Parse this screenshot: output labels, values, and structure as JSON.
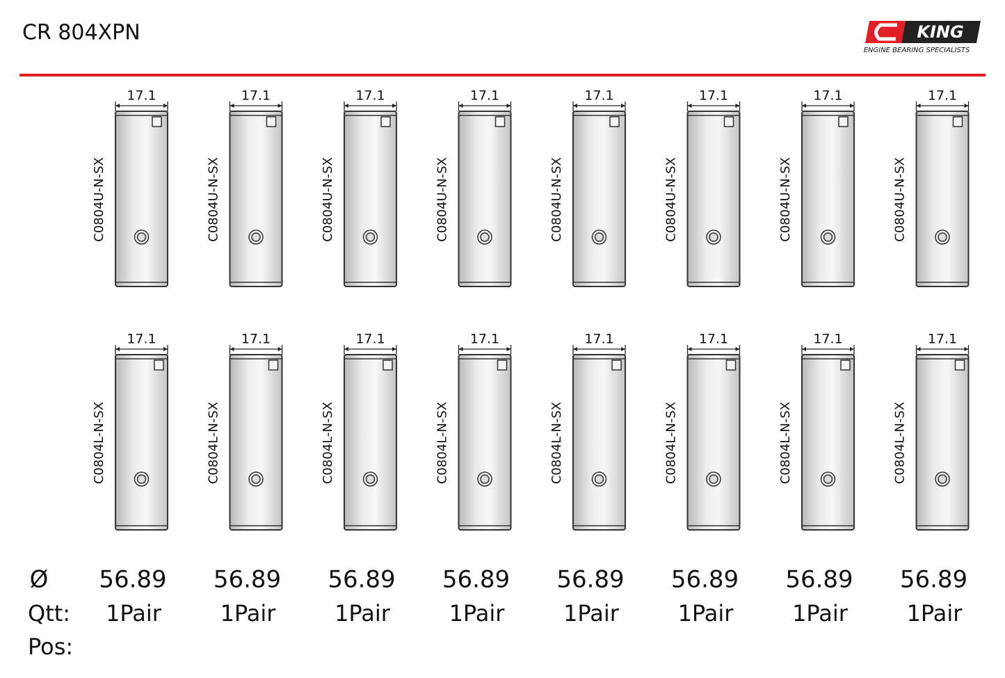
{
  "header": {
    "title": "CR 804XPN",
    "logo": {
      "brand": "KING",
      "tagline": "ENGINE BEARING SPECIALISTS"
    }
  },
  "upper_bearings": [
    {
      "width": "17.1",
      "part": "C0804U-N-SX"
    },
    {
      "width": "17.1",
      "part": "C0804U-N-SX"
    },
    {
      "width": "17.1",
      "part": "C0804U-N-SX"
    },
    {
      "width": "17.1",
      "part": "C0804U-N-SX"
    },
    {
      "width": "17.1",
      "part": "C0804U-N-SX"
    },
    {
      "width": "17.1",
      "part": "C0804U-N-SX"
    },
    {
      "width": "17.1",
      "part": "C0804U-N-SX"
    },
    {
      "width": "17.1",
      "part": "C0804U-N-SX"
    }
  ],
  "lower_bearings": [
    {
      "width": "17.1",
      "part": "C0804L-N-SX"
    },
    {
      "width": "17.1",
      "part": "C0804L-N-SX"
    },
    {
      "width": "17.1",
      "part": "C0804L-N-SX"
    },
    {
      "width": "17.1",
      "part": "C0804L-N-SX"
    },
    {
      "width": "17.1",
      "part": "C0804L-N-SX"
    },
    {
      "width": "17.1",
      "part": "C0804L-N-SX"
    },
    {
      "width": "17.1",
      "part": "C0804L-N-SX"
    },
    {
      "width": "17.1",
      "part": "C0804L-N-SX"
    }
  ],
  "specs": {
    "labels": {
      "diameter": "Ø",
      "quantity": "Qtt:",
      "position": "Pos:"
    },
    "diameter": [
      "56.89",
      "56.89",
      "56.89",
      "56.89",
      "56.89",
      "56.89",
      "56.89",
      "56.89"
    ],
    "quantity": [
      "1Pair",
      "1Pair",
      "1Pair",
      "1Pair",
      "1Pair",
      "1Pair",
      "1Pair",
      "1Pair"
    ]
  }
}
